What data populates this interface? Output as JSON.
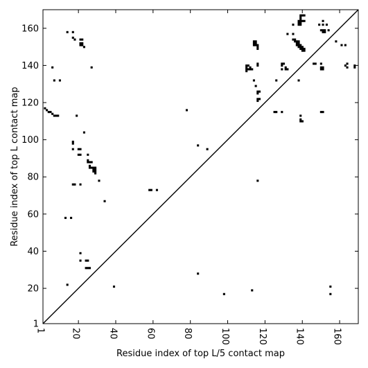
{
  "chart_data": {
    "type": "heatmap",
    "title": "",
    "xlabel": "Residue index of top L/5 contact map",
    "ylabel": "Residue index of top L contact map",
    "xlim": [
      1,
      170
    ],
    "ylim": [
      1,
      170
    ],
    "x_ticks": [
      1,
      20,
      40,
      60,
      80,
      100,
      120,
      140,
      160
    ],
    "y_ticks": [
      1,
      20,
      40,
      60,
      80,
      100,
      120,
      140,
      160
    ],
    "diagonal": true,
    "cell_color": "#000000",
    "upper_triangle_contacts": [
      [
        2,
        117
      ],
      [
        3,
        116
      ],
      [
        4,
        115
      ],
      [
        5,
        115
      ],
      [
        6,
        114
      ],
      [
        7,
        113
      ],
      [
        8,
        113
      ],
      [
        9,
        113
      ],
      [
        6,
        139
      ],
      [
        7,
        132
      ],
      [
        10,
        132
      ],
      [
        14,
        158
      ],
      [
        17,
        158
      ],
      [
        17,
        155
      ],
      [
        18,
        154
      ],
      [
        21,
        154
      ],
      [
        22,
        154
      ],
      [
        21,
        152
      ],
      [
        22,
        152
      ],
      [
        21,
        151
      ],
      [
        22,
        151
      ],
      [
        23,
        150
      ],
      [
        19,
        113
      ],
      [
        23,
        104
      ],
      [
        17,
        99
      ],
      [
        17,
        98
      ],
      [
        17,
        95
      ],
      [
        20,
        95
      ],
      [
        21,
        95
      ],
      [
        20,
        92
      ],
      [
        21,
        92
      ],
      [
        25,
        92
      ],
      [
        25,
        89
      ],
      [
        25,
        88
      ],
      [
        26,
        88
      ],
      [
        27,
        88
      ],
      [
        26,
        86
      ],
      [
        26,
        85
      ],
      [
        27,
        85
      ],
      [
        28,
        85
      ],
      [
        29,
        85
      ],
      [
        28,
        84
      ],
      [
        29,
        84
      ],
      [
        28,
        83
      ],
      [
        29,
        83
      ],
      [
        29,
        82
      ],
      [
        17,
        76
      ],
      [
        18,
        76
      ],
      [
        21,
        76
      ],
      [
        31,
        78
      ],
      [
        34,
        67
      ],
      [
        27,
        139
      ],
      [
        58,
        73
      ],
      [
        59,
        73
      ],
      [
        62,
        73
      ],
      [
        78,
        116
      ],
      [
        84,
        97
      ],
      [
        89,
        95
      ],
      [
        110,
        140
      ],
      [
        111,
        140
      ],
      [
        110,
        139
      ],
      [
        112,
        139
      ],
      [
        110,
        138
      ],
      [
        111,
        138
      ],
      [
        112,
        138
      ],
      [
        113,
        138
      ],
      [
        110,
        137
      ],
      [
        114,
        153
      ],
      [
        115,
        153
      ],
      [
        114,
        152
      ],
      [
        115,
        152
      ],
      [
        114,
        151
      ],
      [
        115,
        151
      ],
      [
        116,
        151
      ],
      [
        116,
        150
      ],
      [
        116,
        149
      ],
      [
        116,
        141
      ],
      [
        116,
        140
      ],
      [
        114,
        132
      ],
      [
        115,
        129
      ],
      [
        116,
        126
      ],
      [
        117,
        126
      ],
      [
        116,
        125
      ],
      [
        116,
        122
      ],
      [
        117,
        122
      ],
      [
        116,
        121
      ],
      [
        116,
        78
      ],
      [
        125,
        115
      ],
      [
        126,
        115
      ],
      [
        126,
        132
      ],
      [
        129,
        115
      ],
      [
        129,
        141
      ],
      [
        130,
        141
      ],
      [
        129,
        140
      ],
      [
        131,
        139
      ],
      [
        129,
        138
      ],
      [
        131,
        138
      ],
      [
        132,
        138
      ],
      [
        132,
        157
      ],
      [
        135,
        162
      ],
      [
        135,
        157
      ],
      [
        135,
        154
      ],
      [
        136,
        154
      ],
      [
        136,
        153
      ],
      [
        137,
        153
      ],
      [
        138,
        153
      ],
      [
        137,
        152
      ],
      [
        138,
        152
      ],
      [
        137,
        151
      ],
      [
        138,
        151
      ],
      [
        139,
        151
      ],
      [
        138,
        150
      ],
      [
        139,
        150
      ],
      [
        140,
        150
      ],
      [
        139,
        149
      ],
      [
        140,
        149
      ],
      [
        141,
        149
      ],
      [
        140,
        148
      ],
      [
        141,
        148
      ],
      [
        138,
        132
      ],
      [
        139,
        113
      ],
      [
        139,
        111
      ],
      [
        139,
        110
      ],
      [
        140,
        110
      ],
      [
        138,
        164
      ],
      [
        139,
        164
      ],
      [
        140,
        164
      ],
      [
        141,
        164
      ],
      [
        138,
        163
      ],
      [
        139,
        163
      ],
      [
        138,
        162
      ],
      [
        139,
        162
      ],
      [
        139,
        165
      ],
      [
        139,
        166
      ],
      [
        139,
        167
      ],
      [
        140,
        167
      ],
      [
        141,
        167
      ],
      [
        146,
        141
      ],
      [
        147,
        141
      ],
      [
        150,
        141
      ],
      [
        150,
        139
      ],
      [
        151,
        139
      ],
      [
        150,
        138
      ],
      [
        151,
        138
      ],
      [
        149,
        162
      ],
      [
        151,
        164
      ],
      [
        151,
        162
      ],
      [
        153,
        162
      ],
      [
        150,
        159
      ],
      [
        151,
        159
      ],
      [
        152,
        159
      ],
      [
        154,
        159
      ],
      [
        151,
        158
      ],
      [
        152,
        158
      ],
      [
        150,
        115
      ],
      [
        151,
        115
      ],
      [
        158,
        153
      ],
      [
        161,
        151
      ],
      [
        163,
        151
      ],
      [
        163,
        140
      ],
      [
        164,
        141
      ],
      [
        164,
        139
      ],
      [
        168,
        140
      ],
      [
        168,
        139
      ]
    ],
    "lower_triangle_contacts": [
      [
        13,
        58
      ],
      [
        16,
        58
      ],
      [
        21,
        39
      ],
      [
        21,
        35
      ],
      [
        24,
        35
      ],
      [
        25,
        35
      ],
      [
        24,
        31
      ],
      [
        25,
        31
      ],
      [
        26,
        31
      ],
      [
        14,
        22
      ],
      [
        39,
        21
      ],
      [
        84,
        28
      ],
      [
        98,
        17
      ],
      [
        113,
        19
      ],
      [
        155,
        21
      ],
      [
        155,
        17
      ]
    ]
  }
}
